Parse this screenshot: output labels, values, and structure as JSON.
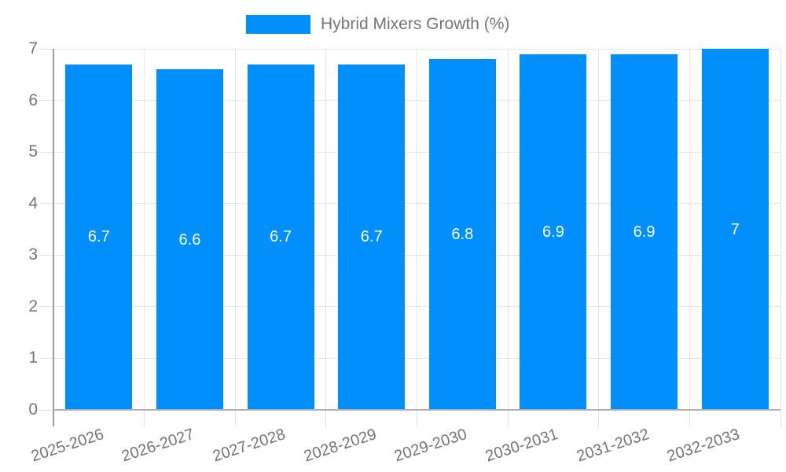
{
  "legend": {
    "label": "Hybrid Mixers Growth (%)"
  },
  "colors": {
    "bar": "#008FFB",
    "grid": "#e3e3e3",
    "x_axis_line": "#b0b0b0",
    "y_axis_line": "#9e9e9e",
    "tick_label": "#757575",
    "data_label": "#ffffff",
    "background": "#ffffff"
  },
  "chart_data": {
    "type": "bar",
    "title": "",
    "xlabel": "",
    "ylabel": "",
    "categories": [
      "2025-2026",
      "2026-2027",
      "2027-2028",
      "2028-2029",
      "2029-2030",
      "2030-2031",
      "2031-2032",
      "2032-2033"
    ],
    "series": [
      {
        "name": "Hybrid Mixers Growth (%)",
        "values": [
          6.7,
          6.6,
          6.7,
          6.7,
          6.8,
          6.9,
          6.9,
          7
        ]
      }
    ],
    "data_labels": [
      "6.7",
      "6.6",
      "6.7",
      "6.7",
      "6.8",
      "6.9",
      "6.9",
      "7"
    ],
    "ylim": [
      0,
      7
    ],
    "yticks": [
      0,
      1,
      2,
      3,
      4,
      5,
      6,
      7
    ],
    "grid": true,
    "legend_position": "top"
  }
}
